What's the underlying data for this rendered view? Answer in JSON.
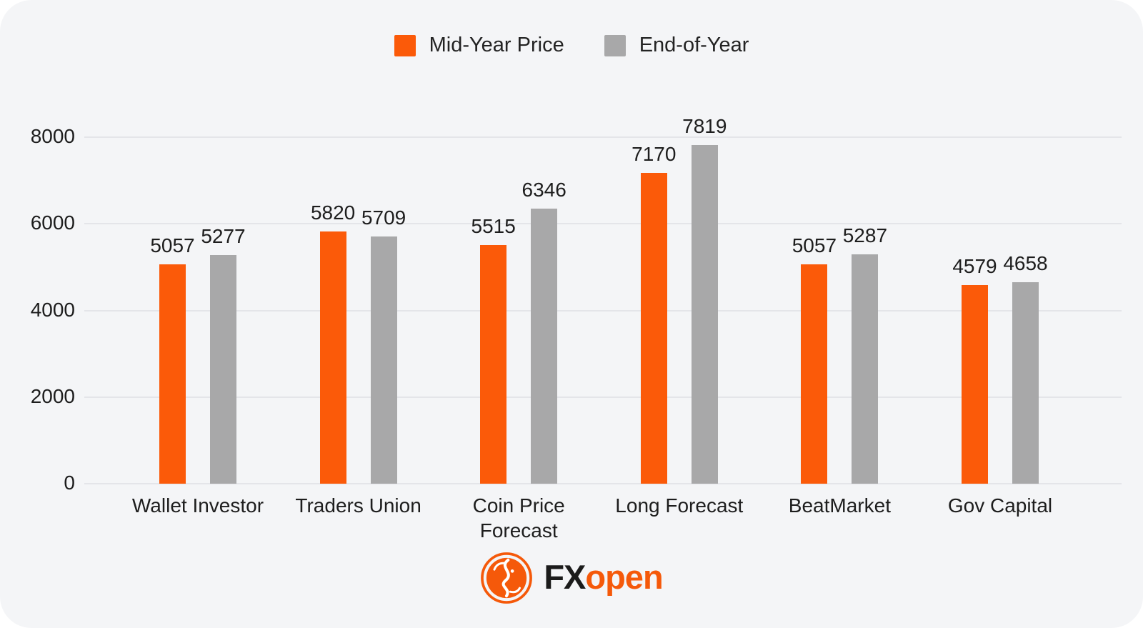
{
  "colors": {
    "page_background": "#ffffff",
    "card_background": "#f4f5f7",
    "gridline": "#e4e5e9",
    "text": "#1d1d1d",
    "accent_orange": "#fb5a09",
    "series_gray": "#a8a8a9",
    "logo_orange": "#f5590a",
    "logo_black": "#1b1b1b"
  },
  "chart_data": {
    "type": "bar",
    "categories": [
      "Wallet Investor",
      "Traders Union",
      "Coin Price\nForecast",
      "Long Forecast",
      "BeatMarket",
      "Gov Capital"
    ],
    "series": [
      {
        "name": "Mid-Year Price",
        "color": "#fb5a09",
        "values": [
          5057,
          5820,
          5515,
          7170,
          5057,
          4579
        ]
      },
      {
        "name": "End-of-Year",
        "color": "#a8a8a9",
        "values": [
          5277,
          5709,
          6346,
          7819,
          5287,
          4658
        ]
      }
    ],
    "title": "",
    "xlabel": "",
    "ylabel": "",
    "ylim": [
      0,
      8000
    ],
    "y_ticks": [
      0,
      2000,
      4000,
      6000,
      8000
    ],
    "grid": true,
    "legend_position": "top-center",
    "value_labels": true
  },
  "logo": {
    "text_primary": "FX",
    "text_secondary": "open",
    "icon": "fxopen-lion-emblem"
  }
}
